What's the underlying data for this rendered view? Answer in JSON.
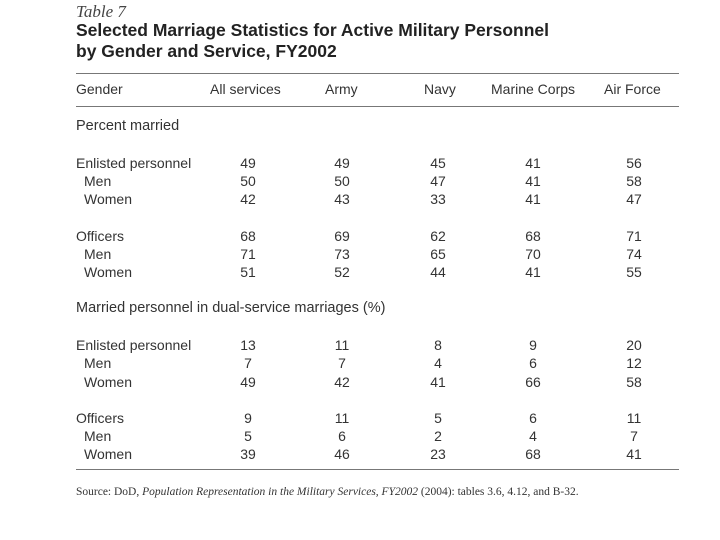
{
  "table_label": "Table 7",
  "title_line1": "Selected Marriage Statistics for Active Military Personnel",
  "title_line2": "by Gender and Service, FY2002",
  "columns": [
    "Gender",
    "All services",
    "Army",
    "Navy",
    "Marine Corps",
    "Air Force"
  ],
  "sections": [
    {
      "title": "Percent married",
      "groups": [
        {
          "rows": [
            {
              "label": "Enlisted personnel",
              "values": [
                "49",
                "49",
                "45",
                "41",
                "56"
              ]
            },
            {
              "label": "Men",
              "values": [
                "50",
                "50",
                "47",
                "41",
                "58"
              ]
            },
            {
              "label": "Women",
              "values": [
                "42",
                "43",
                "33",
                "41",
                "47"
              ]
            }
          ]
        },
        {
          "rows": [
            {
              "label": "Officers",
              "values": [
                "68",
                "69",
                "62",
                "68",
                "71"
              ]
            },
            {
              "label": "Men",
              "values": [
                "71",
                "73",
                "65",
                "70",
                "74"
              ]
            },
            {
              "label": "Women",
              "values": [
                "51",
                "52",
                "44",
                "41",
                "55"
              ]
            }
          ]
        }
      ]
    },
    {
      "title": "Married personnel in dual-service marriages (%)",
      "groups": [
        {
          "rows": [
            {
              "label": "Enlisted personnel",
              "values": [
                "13",
                "11",
                "8",
                "9",
                "20"
              ]
            },
            {
              "label": "Men",
              "values": [
                "7",
                "7",
                "4",
                "6",
                "12"
              ]
            },
            {
              "label": "Women",
              "values": [
                "49",
                "42",
                "41",
                "66",
                "58"
              ]
            }
          ]
        },
        {
          "rows": [
            {
              "label": "Officers",
              "values": [
                "9",
                "11",
                "5",
                "6",
                "11"
              ]
            },
            {
              "label": "Men",
              "values": [
                "5",
                "6",
                "2",
                "4",
                "7"
              ]
            },
            {
              "label": "Women",
              "values": [
                "39",
                "46",
                "23",
                "68",
                "41"
              ]
            }
          ]
        }
      ]
    }
  ],
  "source": {
    "prefix": "Source: DoD, ",
    "italic": "Population Representation in the Military Services, FY2002",
    "suffix": " (2004): tables 3.6, 4.12, and B-32."
  }
}
